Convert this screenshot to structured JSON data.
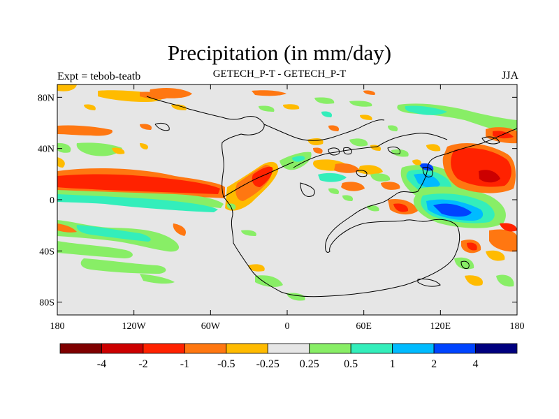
{
  "map": {
    "title": "Precipitation (in mm/day)",
    "left_subtitle": "Expt = tebob-teatb",
    "center_subtitle": "GETECH_P-T - GETECH_P-T",
    "right_subtitle": "JJA",
    "lat_ticks": [
      "80N",
      "40N",
      "0",
      "40S",
      "80S"
    ],
    "lat_tick_values": [
      80,
      40,
      0,
      -40,
      -80
    ],
    "lon_ticks": [
      "180",
      "120W",
      "60W",
      "0",
      "60E",
      "120E",
      "180"
    ],
    "lon_tick_values": [
      -180,
      -120,
      -60,
      0,
      60,
      120,
      180
    ],
    "extent": {
      "lon": [
        -180,
        180
      ],
      "lat": [
        -90,
        90
      ]
    },
    "background_color": "#e6e6e6"
  },
  "colorbar": {
    "colors": [
      "#7f0000",
      "#cc0000",
      "#ff2200",
      "#ff7711",
      "#ffbb00",
      "#e6e6e6",
      "#88ee66",
      "#33eebb",
      "#00bbff",
      "#0044ff",
      "#00007f"
    ],
    "labels": [
      "-4",
      "-2",
      "-1",
      "-0.5",
      "-0.25",
      "0.25",
      "0.5",
      "1",
      "2",
      "4"
    ]
  }
}
